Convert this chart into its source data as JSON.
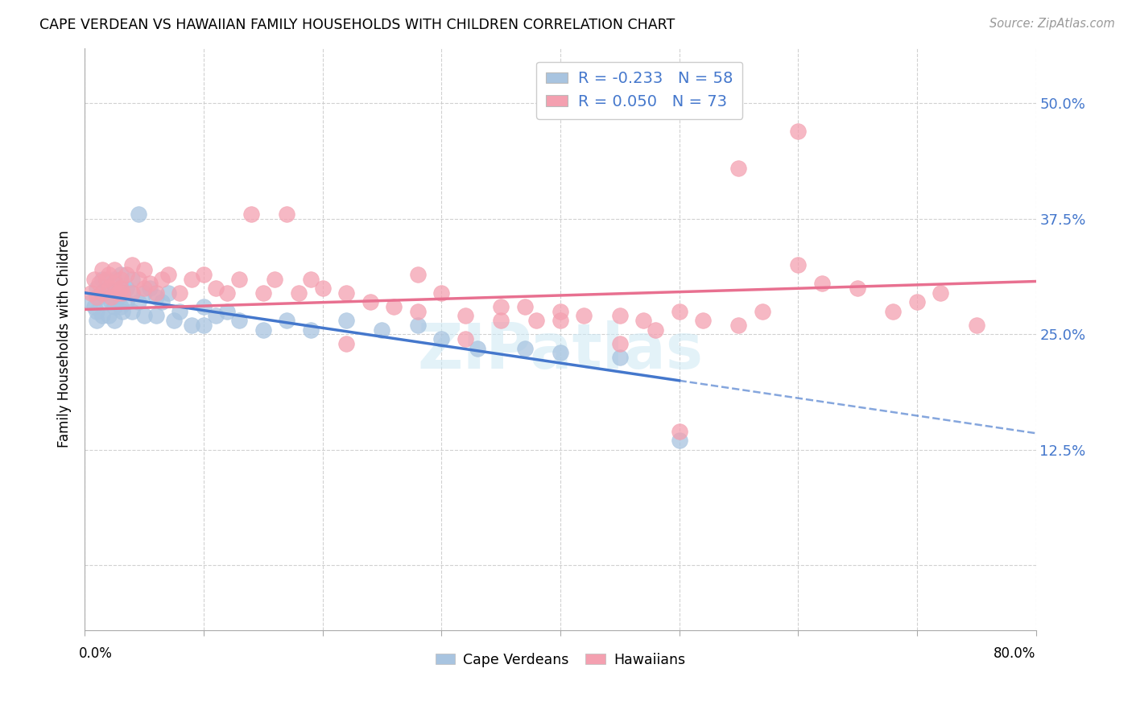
{
  "title": "CAPE VERDEAN VS HAWAIIAN FAMILY HOUSEHOLDS WITH CHILDREN CORRELATION CHART",
  "source": "Source: ZipAtlas.com",
  "ylabel": "Family Households with Children",
  "ytick_labels": [
    "",
    "12.5%",
    "25.0%",
    "37.5%",
    "50.0%"
  ],
  "ytick_values": [
    0.0,
    0.125,
    0.25,
    0.375,
    0.5
  ],
  "xlim": [
    0.0,
    0.8
  ],
  "ylim": [
    -0.07,
    0.56
  ],
  "watermark": "ZIPatlas",
  "legend_R_cv": "-0.233",
  "legend_N_cv": "58",
  "legend_R_hw": "0.050",
  "legend_N_hw": "73",
  "cape_verdean_color": "#a8c4e0",
  "hawaiian_color": "#f4a0b0",
  "trend_cv_color": "#4477cc",
  "trend_hw_color": "#e87090",
  "background_color": "#ffffff",
  "grid_color": "#cccccc",
  "trend_cv_slope": -0.233,
  "trend_cv_intercept": 0.295,
  "trend_hw_slope": 0.05,
  "trend_hw_intercept": 0.275,
  "trend_solid_end": 0.5,
  "cape_verdean_x": [
    0.005,
    0.008,
    0.01,
    0.01,
    0.01,
    0.012,
    0.015,
    0.015,
    0.015,
    0.018,
    0.02,
    0.02,
    0.02,
    0.022,
    0.025,
    0.025,
    0.025,
    0.025,
    0.028,
    0.03,
    0.03,
    0.03,
    0.032,
    0.032,
    0.035,
    0.035,
    0.04,
    0.04,
    0.04,
    0.045,
    0.045,
    0.05,
    0.05,
    0.055,
    0.06,
    0.06,
    0.065,
    0.07,
    0.075,
    0.08,
    0.09,
    0.1,
    0.1,
    0.11,
    0.12,
    0.13,
    0.15,
    0.17,
    0.19,
    0.22,
    0.25,
    0.28,
    0.3,
    0.33,
    0.37,
    0.4,
    0.45,
    0.5
  ],
  "cape_verdean_y": [
    0.285,
    0.28,
    0.3,
    0.275,
    0.265,
    0.29,
    0.31,
    0.295,
    0.27,
    0.285,
    0.3,
    0.295,
    0.27,
    0.285,
    0.31,
    0.295,
    0.28,
    0.265,
    0.29,
    0.3,
    0.315,
    0.28,
    0.295,
    0.275,
    0.3,
    0.285,
    0.31,
    0.295,
    0.275,
    0.38,
    0.285,
    0.295,
    0.27,
    0.3,
    0.29,
    0.27,
    0.285,
    0.295,
    0.265,
    0.275,
    0.26,
    0.28,
    0.26,
    0.27,
    0.275,
    0.265,
    0.255,
    0.265,
    0.255,
    0.265,
    0.255,
    0.26,
    0.245,
    0.235,
    0.235,
    0.23,
    0.225,
    0.135
  ],
  "hawaiian_x": [
    0.005,
    0.008,
    0.01,
    0.012,
    0.015,
    0.015,
    0.018,
    0.02,
    0.02,
    0.022,
    0.025,
    0.025,
    0.028,
    0.03,
    0.03,
    0.032,
    0.035,
    0.04,
    0.04,
    0.045,
    0.05,
    0.05,
    0.055,
    0.06,
    0.065,
    0.07,
    0.08,
    0.09,
    0.1,
    0.11,
    0.12,
    0.13,
    0.14,
    0.15,
    0.16,
    0.17,
    0.18,
    0.19,
    0.2,
    0.22,
    0.24,
    0.26,
    0.28,
    0.3,
    0.32,
    0.35,
    0.37,
    0.4,
    0.42,
    0.45,
    0.47,
    0.5,
    0.52,
    0.55,
    0.57,
    0.6,
    0.62,
    0.65,
    0.68,
    0.7,
    0.72,
    0.75,
    0.55,
    0.6,
    0.5,
    0.45,
    0.38,
    0.32,
    0.28,
    0.22,
    0.48,
    0.4,
    0.35
  ],
  "hawaiian_y": [
    0.295,
    0.31,
    0.29,
    0.305,
    0.32,
    0.295,
    0.31,
    0.3,
    0.315,
    0.29,
    0.305,
    0.32,
    0.295,
    0.31,
    0.3,
    0.295,
    0.315,
    0.325,
    0.295,
    0.31,
    0.3,
    0.32,
    0.305,
    0.295,
    0.31,
    0.315,
    0.295,
    0.31,
    0.315,
    0.3,
    0.295,
    0.31,
    0.38,
    0.295,
    0.31,
    0.38,
    0.295,
    0.31,
    0.3,
    0.295,
    0.285,
    0.28,
    0.275,
    0.295,
    0.27,
    0.28,
    0.28,
    0.275,
    0.27,
    0.27,
    0.265,
    0.275,
    0.265,
    0.26,
    0.275,
    0.325,
    0.305,
    0.3,
    0.275,
    0.285,
    0.295,
    0.26,
    0.43,
    0.47,
    0.145,
    0.24,
    0.265,
    0.245,
    0.315,
    0.24,
    0.255,
    0.265,
    0.265
  ]
}
